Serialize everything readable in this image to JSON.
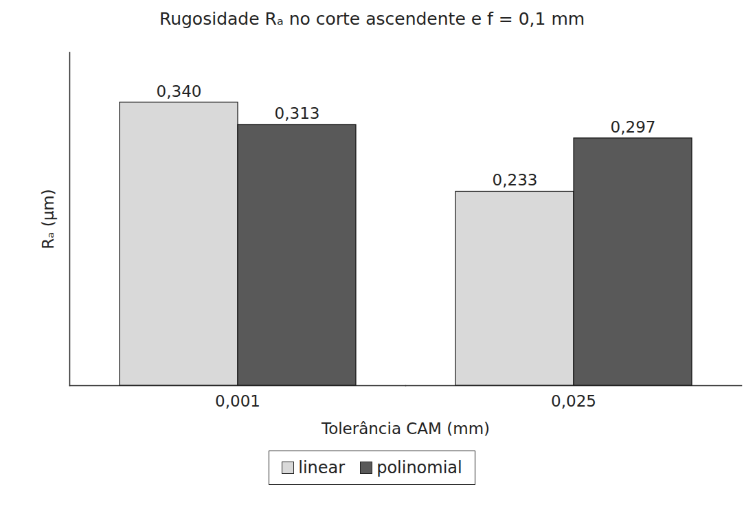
{
  "chart_data": {
    "type": "bar",
    "title": "Rugosidade Rₐ no corte ascendente e f = 0,1 mm",
    "x_label": "Tolerância CAM (mm)",
    "y_label": "Rₐ (µm)",
    "categories": [
      "0,001",
      "0,025"
    ],
    "series": [
      {
        "name": "linear",
        "color": "#d9d9d9",
        "values": [
          0.34,
          0.233
        ],
        "value_labels": [
          "0,340",
          "0,233"
        ]
      },
      {
        "name": "polinomial",
        "color": "#595959",
        "values": [
          0.313,
          0.297
        ],
        "value_labels": [
          "0,313",
          "0,297"
        ]
      }
    ],
    "ylim": [
      0,
      0.4
    ],
    "yticks": [],
    "tick_labels": "x",
    "data_labels": true,
    "legend": "bottom",
    "grid": false
  }
}
